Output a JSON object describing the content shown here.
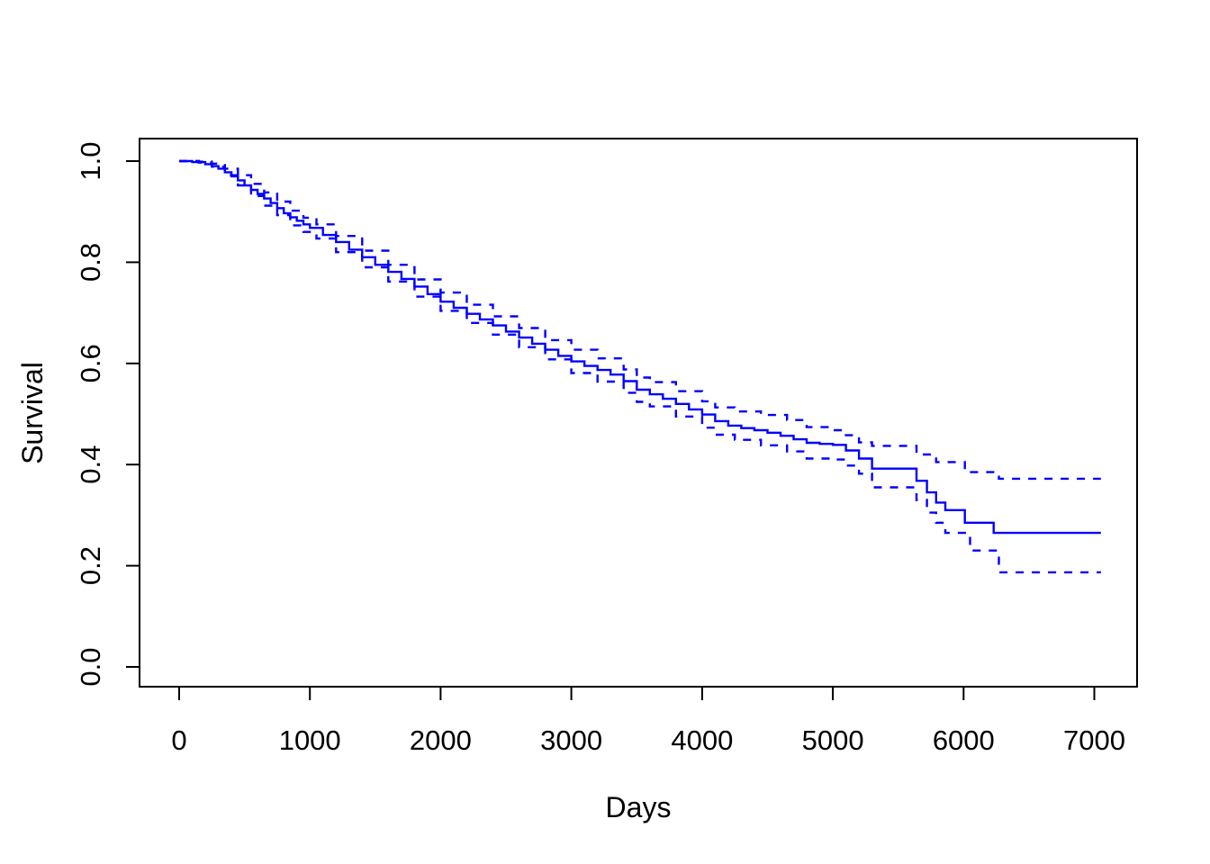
{
  "figure": {
    "background": "#ffffff",
    "line_color": "#0000ff",
    "axis_color": "#000000",
    "xlabel": "Days",
    "ylabel": "Survival"
  },
  "chart_data": {
    "type": "line",
    "subtype": "kaplan-meier-step-function-with-dashed-95ci-bands",
    "title": "",
    "xlabel": "Days",
    "ylabel": "Survival",
    "xlim": [
      0,
      7050
    ],
    "ylim": [
      0.0,
      1.0
    ],
    "grid": false,
    "legend_position": "none",
    "x_ticks": [
      0,
      1000,
      2000,
      3000,
      4000,
      5000,
      6000,
      7000
    ],
    "x_tick_labels": [
      "0",
      "1000",
      "2000",
      "3000",
      "4000",
      "5000",
      "6000",
      "7000"
    ],
    "y_ticks": [
      0.0,
      0.2,
      0.4,
      0.6,
      0.8,
      1.0
    ],
    "y_tick_labels": [
      "0.0",
      "0.2",
      "0.4",
      "0.6",
      "0.8",
      "1.0"
    ],
    "series": [
      {
        "name": "survival-estimate",
        "line_style": "solid",
        "color": "#0000ff",
        "x": [
          0,
          100,
          200,
          250,
          300,
          350,
          400,
          450,
          500,
          550,
          600,
          650,
          700,
          750,
          800,
          850,
          900,
          950,
          1000,
          1100,
          1200,
          1300,
          1400,
          1500,
          1600,
          1700,
          1800,
          1900,
          2000,
          2100,
          2200,
          2300,
          2400,
          2500,
          2600,
          2700,
          2800,
          2900,
          3000,
          3100,
          3200,
          3300,
          3400,
          3500,
          3600,
          3700,
          3800,
          3900,
          4000,
          4100,
          4200,
          4300,
          4400,
          4500,
          4600,
          4700,
          4800,
          4900,
          5000,
          5100,
          5200,
          5300,
          5640,
          5720,
          5790,
          5860,
          6010,
          6230,
          7050
        ],
        "y": [
          1.0,
          0.998,
          0.994,
          0.99,
          0.985,
          0.978,
          0.97,
          0.962,
          0.952,
          0.943,
          0.935,
          0.926,
          0.917,
          0.907,
          0.897,
          0.889,
          0.882,
          0.875,
          0.868,
          0.854,
          0.84,
          0.825,
          0.81,
          0.795,
          0.781,
          0.767,
          0.752,
          0.737,
          0.722,
          0.71,
          0.698,
          0.687,
          0.675,
          0.663,
          0.651,
          0.639,
          0.627,
          0.615,
          0.604,
          0.595,
          0.587,
          0.578,
          0.565,
          0.548,
          0.539,
          0.53,
          0.52,
          0.509,
          0.499,
          0.486,
          0.477,
          0.472,
          0.468,
          0.463,
          0.457,
          0.45,
          0.443,
          0.441,
          0.439,
          0.428,
          0.412,
          0.392,
          0.368,
          0.345,
          0.325,
          0.31,
          0.285,
          0.265,
          0.265
        ]
      },
      {
        "name": "upper-95ci",
        "line_style": "dashed",
        "color": "#0000ff",
        "x": [
          0,
          150,
          250,
          350,
          450,
          550,
          650,
          750,
          850,
          950,
          1050,
          1200,
          1400,
          1600,
          1800,
          2000,
          2200,
          2400,
          2600,
          2800,
          3000,
          3200,
          3400,
          3500,
          3600,
          3800,
          4000,
          4100,
          4250,
          4450,
          4650,
          4800,
          5000,
          5100,
          5200,
          5300,
          5640,
          5790,
          6010,
          6270,
          7050
        ],
        "y": [
          1.0,
          0.999,
          0.995,
          0.985,
          0.972,
          0.955,
          0.938,
          0.92,
          0.902,
          0.888,
          0.875,
          0.852,
          0.823,
          0.795,
          0.766,
          0.74,
          0.716,
          0.693,
          0.67,
          0.646,
          0.627,
          0.61,
          0.588,
          0.572,
          0.563,
          0.545,
          0.525,
          0.513,
          0.505,
          0.498,
          0.488,
          0.474,
          0.468,
          0.458,
          0.444,
          0.437,
          0.42,
          0.405,
          0.385,
          0.372,
          0.372
        ]
      },
      {
        "name": "lower-95ci",
        "line_style": "dashed",
        "color": "#0000ff",
        "x": [
          0,
          150,
          250,
          350,
          450,
          550,
          650,
          750,
          850,
          950,
          1050,
          1200,
          1400,
          1600,
          1800,
          2000,
          2200,
          2400,
          2600,
          2800,
          3000,
          3200,
          3400,
          3500,
          3600,
          3800,
          4000,
          4100,
          4250,
          4450,
          4650,
          4800,
          5000,
          5100,
          5200,
          5300,
          5640,
          5720,
          5790,
          5860,
          6050,
          6270,
          7050
        ],
        "y": [
          1.0,
          0.997,
          0.989,
          0.972,
          0.952,
          0.931,
          0.912,
          0.893,
          0.873,
          0.86,
          0.847,
          0.82,
          0.79,
          0.762,
          0.732,
          0.704,
          0.68,
          0.657,
          0.632,
          0.608,
          0.581,
          0.564,
          0.542,
          0.524,
          0.515,
          0.495,
          0.473,
          0.459,
          0.449,
          0.438,
          0.426,
          0.412,
          0.41,
          0.398,
          0.382,
          0.355,
          0.33,
          0.305,
          0.285,
          0.265,
          0.23,
          0.187,
          0.187
        ]
      }
    ]
  }
}
